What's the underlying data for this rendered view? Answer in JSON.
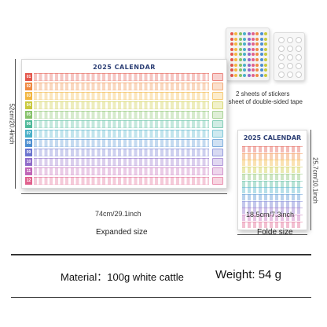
{
  "stickers_caption": {
    "line1": "2 sheets of stickers",
    "line2": "1 sheet of double-sided tape"
  },
  "poster": {
    "title": "2025 CALENDAR",
    "months": [
      "01",
      "02",
      "03",
      "04",
      "05",
      "06",
      "07",
      "08",
      "09",
      "10",
      "11",
      "12"
    ],
    "month_colors": [
      "#e4574c",
      "#f08a43",
      "#f3b640",
      "#c9c93c",
      "#86c26a",
      "#4fb99a",
      "#4ab0c8",
      "#4d8fd1",
      "#6b74cf",
      "#8f6bc9",
      "#c065b6",
      "#e0618d"
    ]
  },
  "fold": {
    "title": "2025 CALENDAR"
  },
  "dims": {
    "poster_height": "52cm/20.4inch",
    "poster_width": "74cm/29.1inch",
    "fold_height": "25.7cm/10.1inch",
    "fold_width": "18.5cm/7.3inch"
  },
  "labels": {
    "expanded": "Expanded size",
    "folded": "Folde size"
  },
  "specs": {
    "material_label": "Material",
    "material_sep": "：",
    "material_value": "100g white cattle",
    "weight_label": "Weight:",
    "weight_value": "54 g"
  }
}
